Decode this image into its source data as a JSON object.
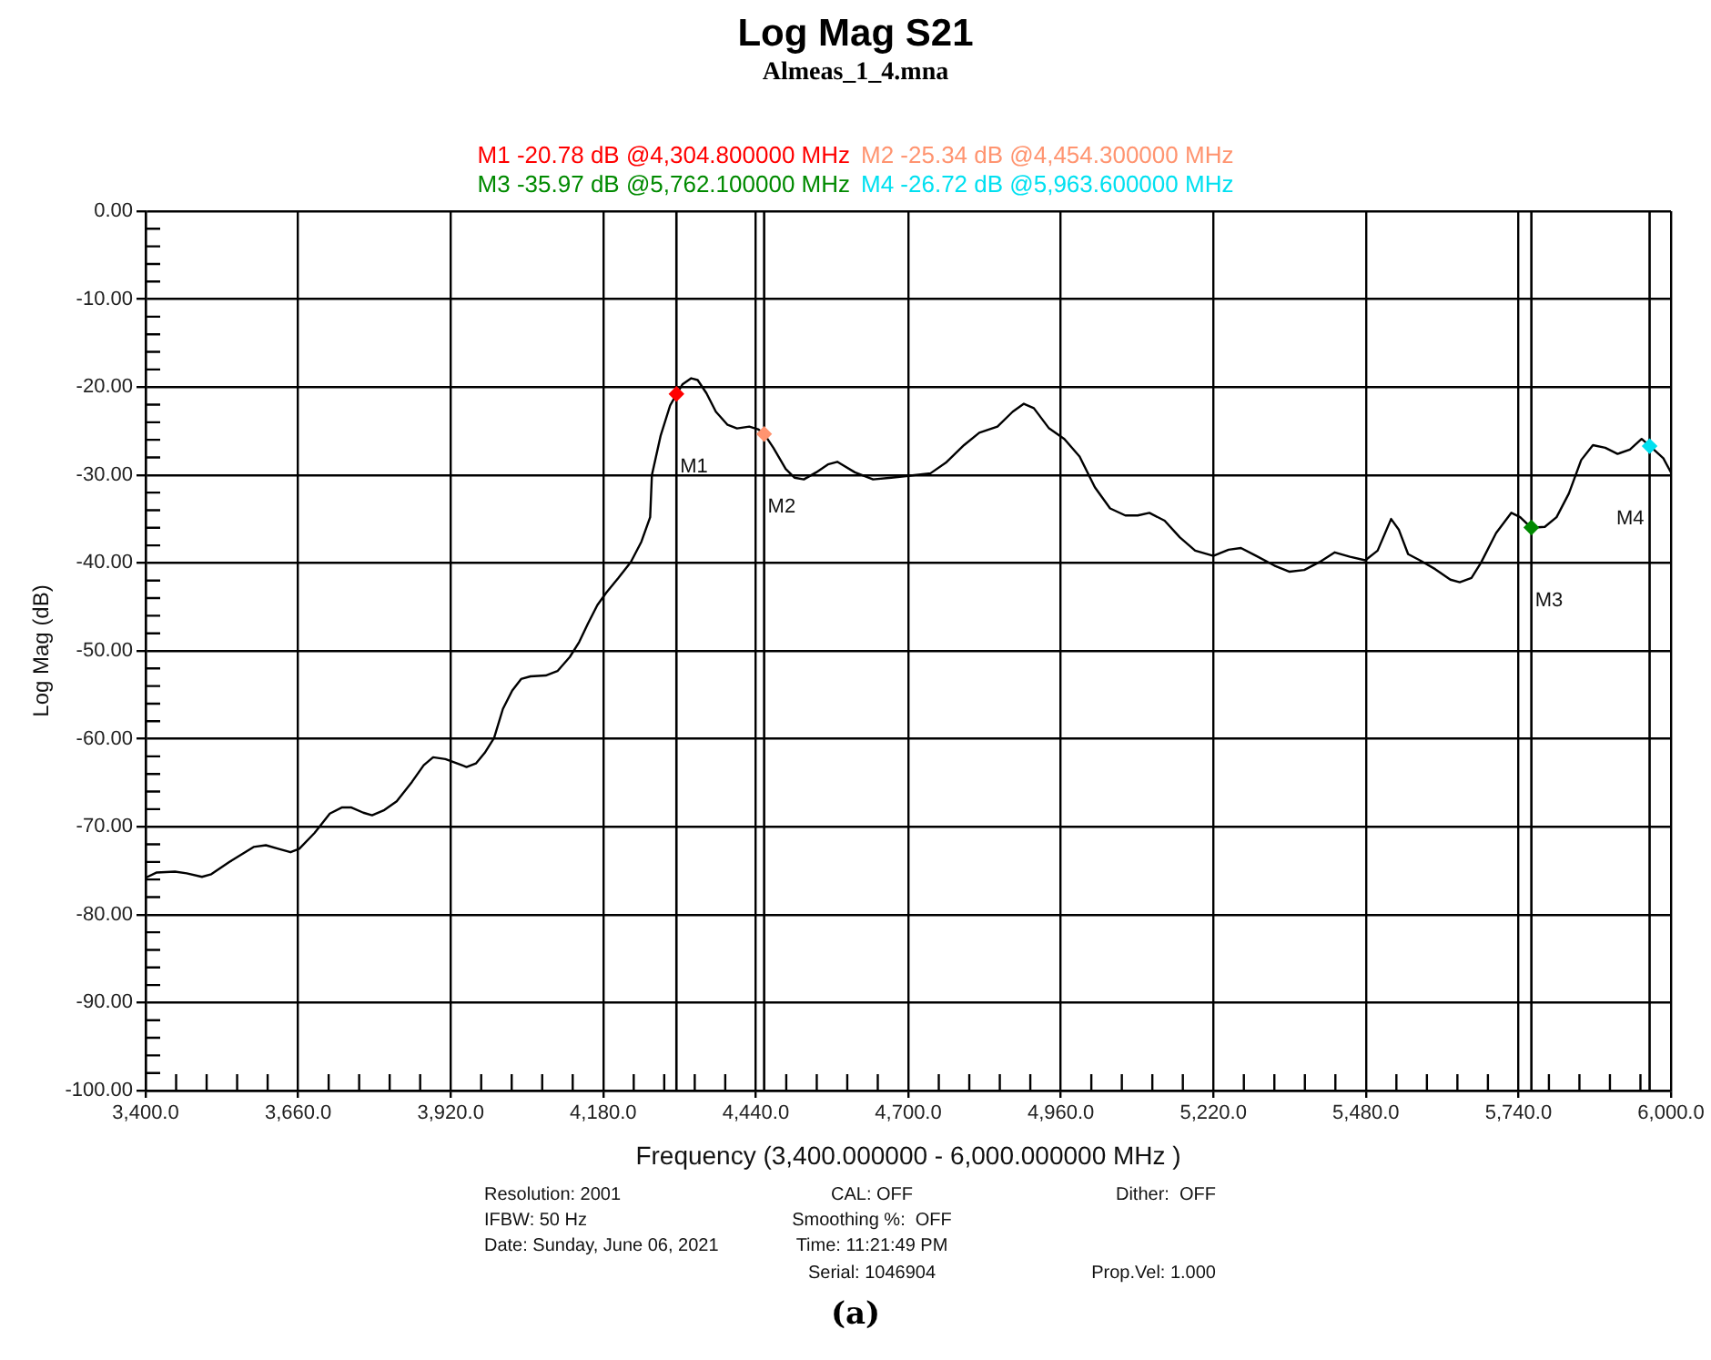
{
  "chart_data": {
    "type": "line",
    "title": "Log Mag S21",
    "subtitle": "Almeas_1_4.mna",
    "xlabel": "Frequency (3,400.000000 - 6,000.000000 MHz )",
    "ylabel": "Log Mag (dB)",
    "annotations": [
      "Resolution: 2001",
      "CAL: OFF",
      "Dither:  OFF",
      "IFBW: 50 Hz",
      "Smoothing %:  OFF",
      "Date: Sunday, June 06, 2021",
      "Time: 11:21:49 PM",
      "Serial: 1046904",
      "Prop.Vel: 1.000",
      "(a)"
    ],
    "series": [
      {
        "color": "#000000",
        "x": [
          3400,
          3419,
          3450,
          3470,
          3496,
          3512,
          3543,
          3584,
          3605,
          3626,
          3647,
          3662,
          3688,
          3714,
          3735,
          3750,
          3771,
          3786,
          3807,
          3828,
          3854,
          3874,
          3890,
          3911,
          3931,
          3947,
          3963,
          3978,
          3994,
          4009,
          4025,
          4040,
          4056,
          4082,
          4102,
          4123,
          4139,
          4154,
          4170,
          4185,
          4206,
          4227,
          4245,
          4260,
          4263,
          4278,
          4294,
          4305,
          4315,
          4330,
          4341,
          4356,
          4372,
          4392,
          4408,
          4429,
          4444,
          4454,
          4470,
          4491,
          4506,
          4522,
          4543,
          4563,
          4579,
          4609,
          4640,
          4671,
          4700,
          4738,
          4764,
          4795,
          4821,
          4852,
          4878,
          4897,
          4914,
          4940,
          4966,
          4992,
          5018,
          5044,
          5070,
          5091,
          5111,
          5137,
          5163,
          5189,
          5220,
          5246,
          5267,
          5293,
          5324,
          5350,
          5375,
          5401,
          5427,
          5453,
          5479,
          5500,
          5523,
          5536,
          5552,
          5572,
          5598,
          5624,
          5640,
          5660,
          5676,
          5702,
          5728,
          5743,
          5762,
          5785,
          5805,
          5826,
          5847,
          5867,
          5888,
          5909,
          5930,
          5950,
          5964,
          5987,
          6000
        ],
        "values": [
          -75.8,
          -75.2,
          -75.1,
          -75.3,
          -75.7,
          -75.4,
          -74.0,
          -72.3,
          -72.1,
          -72.5,
          -72.9,
          -72.5,
          -70.7,
          -68.5,
          -67.8,
          -67.8,
          -68.4,
          -68.7,
          -68.1,
          -67.1,
          -64.9,
          -63.0,
          -62.1,
          -62.3,
          -62.8,
          -63.2,
          -62.8,
          -61.6,
          -59.9,
          -56.6,
          -54.5,
          -53.2,
          -52.9,
          -52.8,
          -52.3,
          -50.7,
          -49.0,
          -46.9,
          -44.8,
          -43.4,
          -41.7,
          -39.9,
          -37.6,
          -34.8,
          -30.0,
          -25.5,
          -22.1,
          -20.8,
          -19.7,
          -19.0,
          -19.2,
          -20.7,
          -22.8,
          -24.3,
          -24.7,
          -24.5,
          -24.8,
          -25.3,
          -26.9,
          -29.3,
          -30.3,
          -30.5,
          -29.7,
          -28.8,
          -28.5,
          -29.7,
          -30.5,
          -30.3,
          -30.1,
          -29.8,
          -28.6,
          -26.6,
          -25.2,
          -24.5,
          -22.8,
          -21.9,
          -22.4,
          -24.7,
          -25.9,
          -27.9,
          -31.4,
          -33.8,
          -34.6,
          -34.6,
          -34.3,
          -35.2,
          -37.1,
          -38.6,
          -39.2,
          -38.5,
          -38.3,
          -39.2,
          -40.3,
          -41.0,
          -40.8,
          -39.9,
          -38.8,
          -39.3,
          -39.7,
          -38.6,
          -35.0,
          -36.2,
          -39.0,
          -39.7,
          -40.7,
          -41.9,
          -42.2,
          -41.7,
          -40.0,
          -36.6,
          -34.3,
          -34.8,
          -36.0,
          -35.9,
          -34.8,
          -32.1,
          -28.3,
          -26.6,
          -26.9,
          -27.6,
          -27.1,
          -25.9,
          -26.7,
          -28.1,
          -29.7
        ]
      },
      {
        "type": "scatter",
        "name": "M1 -20.78 dB @4,304.800000 MHz",
        "color": "#ff0000",
        "marker": "diamond",
        "x": [
          4304.8
        ],
        "values": [
          -20.78
        ]
      },
      {
        "type": "scatter",
        "name": "M2 -25.34 dB @4,454.300000 MHz",
        "color": "#ff9470",
        "marker": "diamond",
        "x": [
          4454.3
        ],
        "values": [
          -25.34
        ]
      },
      {
        "type": "scatter",
        "name": "M3 -35.97 dB @5,762.100000 MHz",
        "color": "#008a00",
        "marker": "diamond",
        "x": [
          5762.1
        ],
        "values": [
          -35.97
        ]
      },
      {
        "type": "scatter",
        "name": "M4 -26.72 dB @5,963.600000 MHz",
        "color": "#00e0f0",
        "marker": "diamond",
        "x": [
          5963.6
        ],
        "values": [
          -26.72
        ]
      }
    ],
    "ref_lines": [
      {
        "axis": "x",
        "value": 4304.8,
        "label": "M1",
        "color": "#000000"
      },
      {
        "axis": "x",
        "value": 4454.3,
        "label": "M2",
        "color": "#000000"
      },
      {
        "axis": "x",
        "value": 5762.1,
        "label": "M3",
        "color": "#000000"
      },
      {
        "axis": "x",
        "value": 5963.6,
        "label": "M4",
        "color": "#000000"
      }
    ],
    "xlim": [
      3400,
      6000
    ],
    "ylim": [
      -100,
      0
    ],
    "xticks": [
      {
        "value": 3400,
        "label": "3,400.0"
      },
      {
        "value": 3452,
        "label": null
      },
      {
        "value": 3504,
        "label": null
      },
      {
        "value": 3556,
        "label": null
      },
      {
        "value": 3608,
        "label": null
      },
      {
        "value": 3660,
        "label": "3,660.0"
      },
      {
        "value": 3712,
        "label": null
      },
      {
        "value": 3764,
        "label": null
      },
      {
        "value": 3816,
        "label": null
      },
      {
        "value": 3868,
        "label": null
      },
      {
        "value": 3920,
        "label": "3,920.0"
      },
      {
        "value": 3972,
        "label": null
      },
      {
        "value": 4024,
        "label": null
      },
      {
        "value": 4076,
        "label": null
      },
      {
        "value": 4128,
        "label": null
      },
      {
        "value": 4180,
        "label": "4,180.0"
      },
      {
        "value": 4232,
        "label": null
      },
      {
        "value": 4284,
        "label": null
      },
      {
        "value": 4336,
        "label": null
      },
      {
        "value": 4388,
        "label": null
      },
      {
        "value": 4440,
        "label": "4,440.0"
      },
      {
        "value": 4492,
        "label": null
      },
      {
        "value": 4544,
        "label": null
      },
      {
        "value": 4596,
        "label": null
      },
      {
        "value": 4648,
        "label": null
      },
      {
        "value": 4700,
        "label": "4,700.0"
      },
      {
        "value": 4752,
        "label": null
      },
      {
        "value": 4804,
        "label": null
      },
      {
        "value": 4856,
        "label": null
      },
      {
        "value": 4908,
        "label": null
      },
      {
        "value": 4960,
        "label": "4,960.0"
      },
      {
        "value": 5012,
        "label": null
      },
      {
        "value": 5064,
        "label": null
      },
      {
        "value": 5116,
        "label": null
      },
      {
        "value": 5168,
        "label": null
      },
      {
        "value": 5220,
        "label": "5,220.0"
      },
      {
        "value": 5272,
        "label": null
      },
      {
        "value": 5324,
        "label": null
      },
      {
        "value": 5376,
        "label": null
      },
      {
        "value": 5428,
        "label": null
      },
      {
        "value": 5480,
        "label": "5,480.0"
      },
      {
        "value": 5532,
        "label": null
      },
      {
        "value": 5584,
        "label": null
      },
      {
        "value": 5636,
        "label": null
      },
      {
        "value": 5688,
        "label": null
      },
      {
        "value": 5740,
        "label": "5,740.0"
      },
      {
        "value": 5792,
        "label": null
      },
      {
        "value": 5844,
        "label": null
      },
      {
        "value": 5896,
        "label": null
      },
      {
        "value": 5948,
        "label": null
      },
      {
        "value": 6000,
        "label": "6,000.0"
      }
    ],
    "yticks": [
      {
        "value": 0,
        "label": "0.00"
      },
      {
        "value": -2,
        "label": null
      },
      {
        "value": -4,
        "label": null
      },
      {
        "value": -6,
        "label": null
      },
      {
        "value": -8,
        "label": null
      },
      {
        "value": -10,
        "label": "-10.00"
      },
      {
        "value": -12,
        "label": null
      },
      {
        "value": -14,
        "label": null
      },
      {
        "value": -16,
        "label": null
      },
      {
        "value": -18,
        "label": null
      },
      {
        "value": -20,
        "label": "-20.00"
      },
      {
        "value": -22,
        "label": null
      },
      {
        "value": -24,
        "label": null
      },
      {
        "value": -26,
        "label": null
      },
      {
        "value": -28,
        "label": null
      },
      {
        "value": -30,
        "label": "-30.00"
      },
      {
        "value": -32,
        "label": null
      },
      {
        "value": -34,
        "label": null
      },
      {
        "value": -36,
        "label": null
      },
      {
        "value": -38,
        "label": null
      },
      {
        "value": -40,
        "label": "-40.00"
      },
      {
        "value": -42,
        "label": null
      },
      {
        "value": -44,
        "label": null
      },
      {
        "value": -46,
        "label": null
      },
      {
        "value": -48,
        "label": null
      },
      {
        "value": -50,
        "label": "-50.00"
      },
      {
        "value": -52,
        "label": null
      },
      {
        "value": -54,
        "label": null
      },
      {
        "value": -56,
        "label": null
      },
      {
        "value": -58,
        "label": null
      },
      {
        "value": -60,
        "label": "-60.00"
      },
      {
        "value": -62,
        "label": null
      },
      {
        "value": -64,
        "label": null
      },
      {
        "value": -66,
        "label": null
      },
      {
        "value": -68,
        "label": null
      },
      {
        "value": -70,
        "label": "-70.00"
      },
      {
        "value": -72,
        "label": null
      },
      {
        "value": -74,
        "label": null
      },
      {
        "value": -76,
        "label": null
      },
      {
        "value": -78,
        "label": null
      },
      {
        "value": -80,
        "label": "-80.00"
      },
      {
        "value": -82,
        "label": null
      },
      {
        "value": -84,
        "label": null
      },
      {
        "value": -86,
        "label": null
      },
      {
        "value": -88,
        "label": null
      },
      {
        "value": -90,
        "label": "-90.00"
      },
      {
        "value": -92,
        "label": null
      },
      {
        "value": -94,
        "label": null
      },
      {
        "value": -96,
        "label": null
      },
      {
        "value": -98,
        "label": null
      },
      {
        "value": -100,
        "label": "-100.00"
      }
    ],
    "marker": "none",
    "grid": true,
    "legend": "top"
  }
}
